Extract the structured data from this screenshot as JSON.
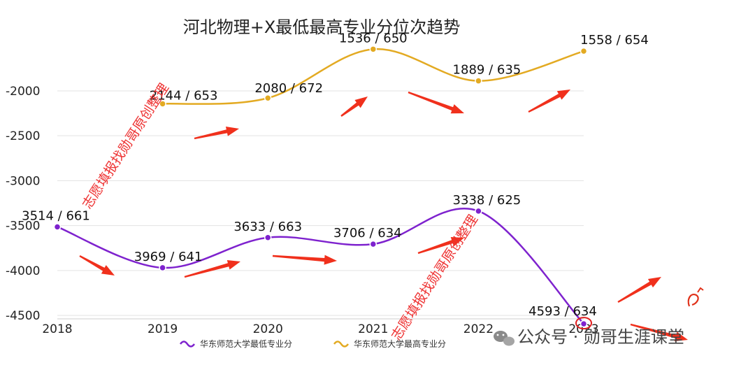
{
  "chart_data": {
    "type": "line",
    "title": "河北物理+X最低最高专业分位次趋势",
    "categories": [
      "2018",
      "2019",
      "2020",
      "2021",
      "2022",
      "2023"
    ],
    "ylim": [
      -4600,
      -1300
    ],
    "yticks": [
      -2000,
      -2500,
      -3000,
      -3500,
      -4000,
      -4500
    ],
    "ytick_labels": [
      "-2000",
      "-2500",
      "-3000",
      "-3500",
      "-4000",
      "-4500"
    ],
    "series": [
      {
        "name": "华东师范大学最低专业分",
        "color": "#7e22ce",
        "values": [
          -3514,
          -3969,
          -3633,
          -3706,
          -3338,
          -4593
        ],
        "labels": [
          "3514 / 661",
          "3969 / 641",
          "3633 / 663",
          "3706 / 634",
          "3338 / 625",
          "4593 / 634"
        ]
      },
      {
        "name": "华东师范大学最高专业分",
        "color": "#e3aa22",
        "values": [
          null,
          -2144,
          -2080,
          -1536,
          -1889,
          -1558
        ],
        "labels": [
          null,
          "2144 / 653",
          "2080 / 672",
          "1536 / 650",
          "1889 / 635",
          "1558 / 654"
        ]
      }
    ]
  },
  "watermark": "志愿填报找勋哥原创整理",
  "brand": {
    "label": "公众号 · 勋哥生涯课堂"
  },
  "colors": {
    "arrow": "#f0301c",
    "grid": "#e3e3e3"
  }
}
